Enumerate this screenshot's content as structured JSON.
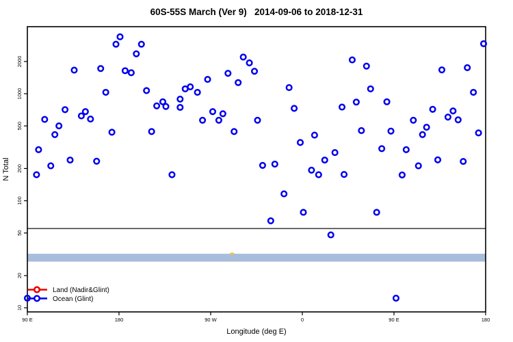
{
  "title": "60S-55S March (Ver 9)   2014-09-06 to 2018-12-31",
  "chart_data": {
    "type": "scatter",
    "title": "60S-55S March (Ver 9)   2014-09-06 to 2018-12-31",
    "xlabel": "Longitude (deg E)",
    "ylabel": "N Total",
    "x_axis": {
      "range": [
        90,
        540
      ],
      "ticks": [
        90,
        180,
        270,
        360,
        450,
        540
      ],
      "tick_labels": [
        "90 E",
        "180",
        "90 W",
        "0",
        "90 E",
        "180"
      ],
      "note": "longitude axis wraps eastward: 90E,180,90W,0,90E,180"
    },
    "y_axis": {
      "scale": "log10",
      "range": [
        10,
        4200
      ],
      "ticks": [
        10,
        20,
        50,
        100,
        200,
        500,
        1000,
        2000
      ],
      "tick_labels": [
        "10",
        "20",
        "50",
        "100",
        "200",
        "500",
        "1000",
        "2000"
      ]
    },
    "grid": false,
    "threshold_line_n": 55,
    "band": {
      "n_range": [
        27,
        32
      ],
      "color": "#a8bddb"
    },
    "colors": {
      "ocean": "#0000ee",
      "land": "#ee0000",
      "axis": "#000000"
    },
    "legend": {
      "position": "bottom-left",
      "entries": [
        {
          "label": "Land (Nadir&Glint)",
          "color": "#ee0000"
        },
        {
          "label": "Ocean (Glint)",
          "color": "#0000ee"
        }
      ]
    },
    "series": [
      {
        "name": "Ocean (Glint)",
        "marker": "open-circle",
        "color": "#0000ee",
        "points": [
          [
            181,
            3400
          ],
          [
            177,
            2900
          ],
          [
            202,
            2900
          ],
          [
            197,
            2360
          ],
          [
            162,
            1720
          ],
          [
            136,
            1660
          ],
          [
            186,
            1640
          ],
          [
            192,
            1570
          ],
          [
            207,
            1070
          ],
          [
            167,
            1030
          ],
          [
            240,
            890
          ],
          [
            223,
            840
          ],
          [
            217,
            770
          ],
          [
            226,
            760
          ],
          [
            240,
            745
          ],
          [
            127,
            710
          ],
          [
            147,
            680
          ],
          [
            143,
            620
          ],
          [
            152,
            580
          ],
          [
            107,
            575
          ],
          [
            121,
            500
          ],
          [
            302,
            2200
          ],
          [
            308,
            1940
          ],
          [
            313,
            1620
          ],
          [
            287,
            1550
          ],
          [
            267,
            1360
          ],
          [
            297,
            1270
          ],
          [
            250,
            1160
          ],
          [
            245,
            1110
          ],
          [
            257,
            1030
          ],
          [
            347,
            1140
          ],
          [
            352,
            730
          ],
          [
            272,
            680
          ],
          [
            282,
            650
          ],
          [
            262,
            565
          ],
          [
            278,
            565
          ],
          [
            316,
            565
          ],
          [
            538,
            2930
          ],
          [
            409,
            2070
          ],
          [
            423,
            1810
          ],
          [
            522,
            1750
          ],
          [
            497,
            1670
          ],
          [
            427,
            1110
          ],
          [
            528,
            1030
          ],
          [
            443,
            840
          ],
          [
            413,
            835
          ],
          [
            399,
            750
          ],
          [
            488,
            715
          ],
          [
            508,
            690
          ],
          [
            503,
            605
          ],
          [
            513,
            570
          ],
          [
            469,
            565
          ],
          [
            117,
            415
          ],
          [
            173,
            437
          ],
          [
            212,
            443
          ],
          [
            101,
            300
          ],
          [
            132,
            240
          ],
          [
            158,
            234
          ],
          [
            113,
            212
          ],
          [
            99,
            175
          ],
          [
            232,
            175
          ],
          [
            293,
            443
          ],
          [
            372,
            410
          ],
          [
            358,
            350
          ],
          [
            333,
            220
          ],
          [
            321,
            214
          ],
          [
            392,
            282
          ],
          [
            382,
            240
          ],
          [
            369,
            193
          ],
          [
            376,
            175
          ],
          [
            342,
            116
          ],
          [
            361,
            78
          ],
          [
            329,
            65
          ],
          [
            482,
            486
          ],
          [
            418,
            452
          ],
          [
            447,
            447
          ],
          [
            533,
            430
          ],
          [
            478,
            415
          ],
          [
            438,
            307
          ],
          [
            462,
            300
          ],
          [
            493,
            241
          ],
          [
            518,
            233
          ],
          [
            474,
            212
          ],
          [
            401,
            176
          ],
          [
            458,
            174
          ],
          [
            433,
            78
          ],
          [
            388,
            48
          ],
          [
            452,
            12.3
          ],
          [
            90,
            12.3
          ]
        ]
      }
    ],
    "extra_marks": [
      {
        "type": "dash",
        "color": "#e0c44f",
        "lon": 291,
        "n": 32
      }
    ]
  }
}
